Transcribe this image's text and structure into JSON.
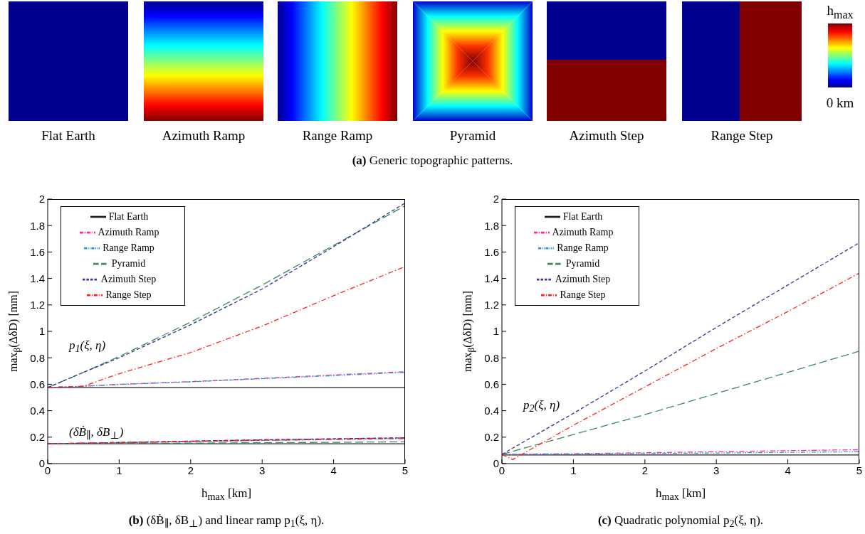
{
  "chart_data": [
    {
      "type": "other",
      "title": "(a) Generic topographic patterns.",
      "annotations": [
        "Flat Earth",
        "Azimuth Ramp",
        "Range Ramp",
        "Pyramid",
        "Azimuth Step",
        "Range Step",
        "h$_{max}$",
        "0 km"
      ]
    },
    {
      "type": "line",
      "title": "(b) (δḂ$_{∥}$, δB$_{⊥}$) and linear ramp p$_{1}$(ξ, η).",
      "xlabel": "h$_{max}$ [km]",
      "ylabel": "max$_{β}$(ΔδD) [mm]",
      "xlim": [
        0,
        5
      ],
      "xticks": [
        0,
        1,
        2,
        3,
        4,
        5
      ],
      "ylim": [
        0,
        2
      ],
      "yticks": [
        0,
        0.2,
        0.4,
        0.6,
        0.8,
        1,
        1.2,
        1.4,
        1.6,
        1.8,
        2
      ],
      "legend": "top left",
      "marker": "none",
      "annotations": [
        "p$_{1}$(ξ, η)",
        "(δḂ$_{∥}$, δB$_{⊥}$)"
      ],
      "series": [
        {
          "name": "Flat Earth",
          "color": "#222222",
          "line_style": "solid",
          "x": [
            0,
            5
          ],
          "values": [
            0.575,
            0.575
          ]
        },
        {
          "name": "Azimuth Ramp",
          "color": "#ff22aa",
          "line_style": "dashdot",
          "x": [
            0,
            0.5,
            1,
            2,
            3,
            4,
            5
          ],
          "values": [
            0.575,
            0.585,
            0.6,
            0.62,
            0.645,
            0.67,
            0.695
          ]
        },
        {
          "name": "Range Ramp",
          "color": "#3399cc",
          "line_style": "dashdotdot",
          "x": [
            0,
            0.5,
            1,
            2,
            3,
            4,
            5
          ],
          "values": [
            0.575,
            0.585,
            0.598,
            0.618,
            0.642,
            0.665,
            0.69
          ]
        },
        {
          "name": "Pyramid",
          "color": "#3a8a5a",
          "line_style": "longdash",
          "x": [
            0,
            0.5,
            1,
            2,
            3,
            4,
            5
          ],
          "values": [
            0.575,
            0.69,
            0.81,
            1.07,
            1.35,
            1.65,
            1.95
          ]
        },
        {
          "name": "Azimuth Step",
          "color": "#333399",
          "line_style": "dashed",
          "x": [
            0,
            0.5,
            1,
            2,
            3,
            4,
            5
          ],
          "values": [
            0.575,
            0.69,
            0.8,
            1.05,
            1.32,
            1.64,
            1.97
          ]
        },
        {
          "name": "Range Step",
          "color": "#ff2020",
          "line_style": "dashdot",
          "x": [
            0,
            0.5,
            1,
            2,
            2.8,
            3,
            4,
            5
          ],
          "values": [
            0.575,
            0.585,
            0.68,
            0.84,
            1.0,
            1.04,
            1.27,
            1.49
          ]
        },
        {
          "color": "#222222",
          "line_style": "solid",
          "x": [
            0,
            5
          ],
          "values": [
            0.15,
            0.15
          ]
        },
        {
          "color": "#ff22aa",
          "line_style": "dashdot",
          "x": [
            0,
            1,
            2,
            3,
            4,
            5
          ],
          "values": [
            0.15,
            0.16,
            0.17,
            0.18,
            0.187,
            0.195
          ]
        },
        {
          "color": "#3399cc",
          "line_style": "dashdotdot",
          "x": [
            0,
            1,
            2,
            3,
            4,
            5
          ],
          "values": [
            0.15,
            0.158,
            0.166,
            0.175,
            0.182,
            0.19
          ]
        },
        {
          "color": "#3a8a5a",
          "line_style": "longdash",
          "x": [
            0,
            1,
            2,
            3,
            4,
            5
          ],
          "values": [
            0.15,
            0.152,
            0.155,
            0.158,
            0.161,
            0.165
          ]
        },
        {
          "color": "#333399",
          "line_style": "dashed",
          "x": [
            0,
            1,
            2,
            3,
            4,
            5
          ],
          "values": [
            0.15,
            0.16,
            0.17,
            0.18,
            0.188,
            0.195
          ]
        },
        {
          "color": "#ff2020",
          "line_style": "dashdot",
          "x": [
            0,
            1,
            2,
            3,
            4,
            5
          ],
          "values": [
            0.15,
            0.158,
            0.167,
            0.176,
            0.183,
            0.19
          ]
        }
      ]
    },
    {
      "type": "line",
      "title": "(c) Quadratic polynomial p$_{2}$(ξ, η).",
      "xlabel": "h$_{max}$ [km]",
      "ylabel": "max$_{β}$(ΔδD) [mm]",
      "xlim": [
        0,
        5
      ],
      "xticks": [
        0,
        1,
        2,
        3,
        4,
        5
      ],
      "ylim": [
        0,
        2
      ],
      "yticks": [
        0,
        0.2,
        0.4,
        0.6,
        0.8,
        1,
        1.2,
        1.4,
        1.6,
        1.8,
        2
      ],
      "legend": "top left",
      "marker": "none",
      "annotations": [
        "p$_{2}$(ξ, η)"
      ],
      "series": [
        {
          "name": "Flat Earth",
          "color": "#222222",
          "line_style": "solid",
          "x": [
            0,
            5
          ],
          "values": [
            0.065,
            0.065
          ]
        },
        {
          "name": "Azimuth Ramp",
          "color": "#ff22aa",
          "line_style": "dashdot",
          "x": [
            0,
            1,
            2,
            3,
            4,
            5
          ],
          "values": [
            0.07,
            0.075,
            0.082,
            0.09,
            0.098,
            0.105
          ]
        },
        {
          "name": "Range Ramp",
          "color": "#3399cc",
          "line_style": "dashdotdot",
          "x": [
            0,
            1,
            2,
            3,
            4,
            5
          ],
          "values": [
            0.07,
            0.072,
            0.076,
            0.08,
            0.085,
            0.09
          ]
        },
        {
          "name": "Pyramid",
          "color": "#3a8a5a",
          "line_style": "longdash",
          "x": [
            0,
            1,
            2,
            3,
            4,
            5
          ],
          "values": [
            0.07,
            0.22,
            0.37,
            0.53,
            0.69,
            0.85
          ]
        },
        {
          "name": "Azimuth Step",
          "color": "#333399",
          "line_style": "dashed",
          "x": [
            0,
            1,
            2,
            3,
            4,
            5
          ],
          "values": [
            0.07,
            0.38,
            0.7,
            1.03,
            1.35,
            1.67
          ]
        },
        {
          "name": "Range Step",
          "color": "#ff2020",
          "line_style": "dashdot",
          "x": [
            0,
            0.15,
            1,
            2,
            3,
            4,
            5
          ],
          "values": [
            0.07,
            0.03,
            0.29,
            0.58,
            0.87,
            1.15,
            1.44
          ]
        }
      ]
    }
  ]
}
